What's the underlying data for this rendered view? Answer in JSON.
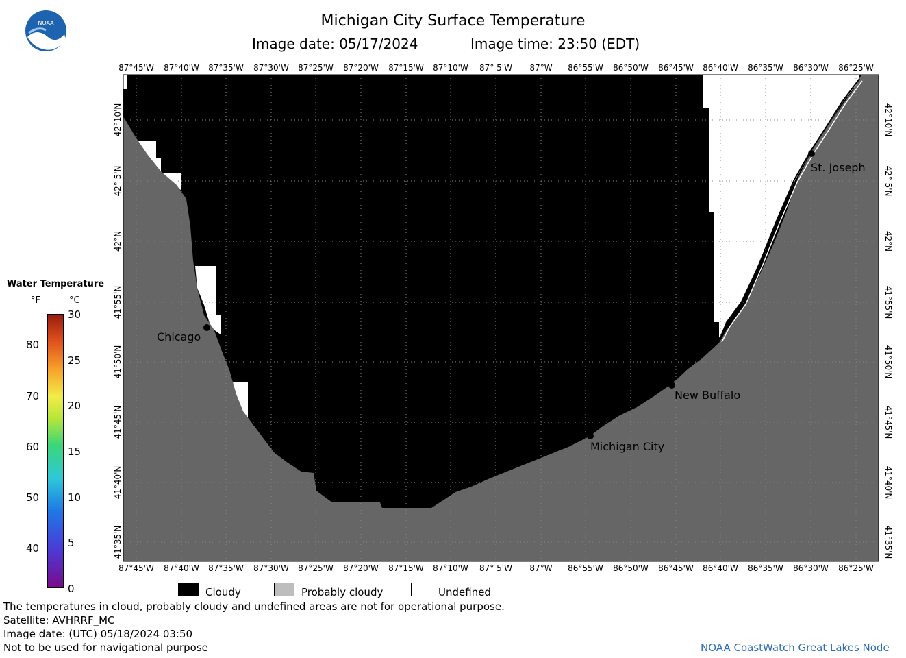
{
  "header": {
    "title": "Michigan City Surface Temperature",
    "image_date": "Image date: 05/17/2024",
    "image_time": "Image time: 23:50 (EDT)"
  },
  "logo": {
    "text": "NOAA"
  },
  "longitudes": [
    "87°45'W",
    "87°40'W",
    "87°35'W",
    "87°30'W",
    "87°25'W",
    "87°20'W",
    "87°15'W",
    "87°10'W",
    "87° 5'W",
    "87°W",
    "86°55'W",
    "86°50'W",
    "86°45'W",
    "86°40'W",
    "86°35'W",
    "86°30'W",
    "86°25'W"
  ],
  "latitudes": [
    "42°10'N",
    "42° 5'N",
    "42°N",
    "41°55'N",
    "41°50'N",
    "41°45'N",
    "41°40'N",
    "41°35'N"
  ],
  "cities": [
    {
      "name": "Chicago"
    },
    {
      "name": "Michigan City"
    },
    {
      "name": "New Buffalo"
    },
    {
      "name": "St. Joseph"
    }
  ],
  "colorbar": {
    "title": "Water Temperature",
    "unit_f": "°F",
    "unit_c": "°C",
    "f_ticks": [
      "80",
      "70",
      "60",
      "50",
      "40"
    ],
    "c_ticks": [
      "30",
      "25",
      "20",
      "15",
      "10",
      "5",
      "0"
    ]
  },
  "legend": [
    {
      "label": "Cloudy",
      "color": "#000000"
    },
    {
      "label": "Probably cloudy",
      "color": "#bdbdbd"
    },
    {
      "label": "Undefined",
      "color": "#ffffff"
    }
  ],
  "footer": {
    "line1": "The temperatures in cloud, probably cloudy and undefined areas are not for operational purpose.",
    "line2": "Satellite: AVHRRF_MC",
    "line3": "Image date: (UTC) 05/18/2024  03:50",
    "line4": "Not to be used for navigational purpose",
    "credit": "NOAA CoastWatch Great Lakes Node"
  },
  "colors": {
    "land": "#666666",
    "cloud": "#000000",
    "undefined": "#ffffff",
    "credit": "#2f6fb8"
  }
}
